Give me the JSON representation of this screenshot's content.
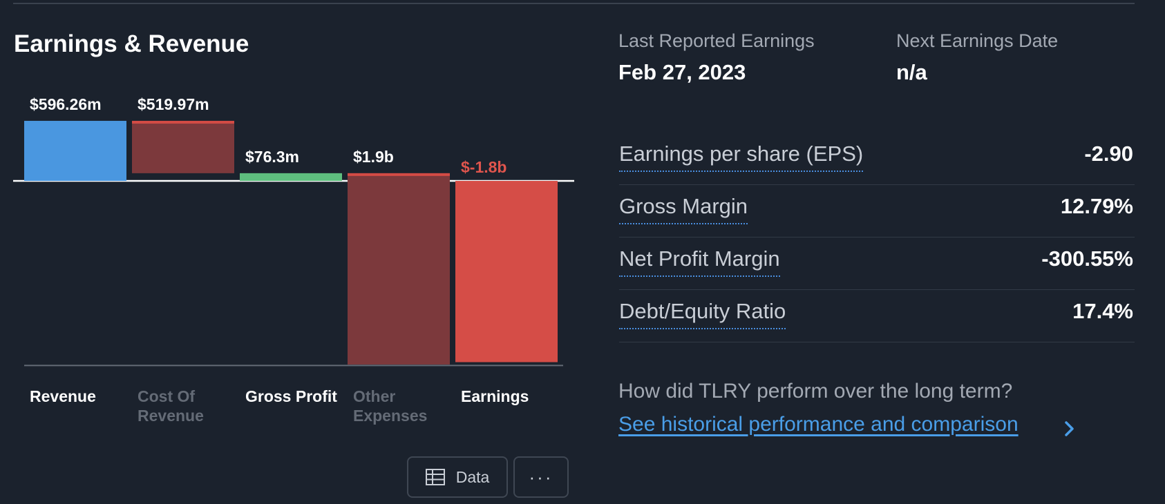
{
  "section": {
    "title": "Earnings & Revenue"
  },
  "toolbar": {
    "data_label": "Data",
    "more_label": "···",
    "data_icon": "table-icon"
  },
  "earnings_info": {
    "last_label": "Last Reported Earnings",
    "last_value": "Feb 27, 2023",
    "next_label": "Next Earnings Date",
    "next_value": "n/a"
  },
  "metrics": [
    {
      "label": "Earnings per share (EPS)",
      "value": "-2.90"
    },
    {
      "label": "Gross Margin",
      "value": "12.79%"
    },
    {
      "label": "Net Profit Margin",
      "value": "-300.55%"
    },
    {
      "label": "Debt/Equity Ratio",
      "value": "17.4%"
    }
  ],
  "long_term": {
    "question": "How did TLRY perform over the long term?",
    "link_text": "See historical performance and comparison"
  },
  "colors": {
    "background": "#1b222d",
    "revenue": "#4a97e0",
    "cost": "#7c393c",
    "cost_accent": "#d34b45",
    "profit": "#5ebe7e",
    "earnings": "#d54d47",
    "negative_text": "#e0554d",
    "link": "#4a9ee8"
  },
  "chart_data": {
    "type": "bar",
    "subtype": "waterfall",
    "unit": "USD",
    "categories": [
      "Revenue",
      "Cost Of Revenue",
      "Gross Profit",
      "Other Expenses",
      "Earnings"
    ],
    "values": [
      596.26,
      519.97,
      76.3,
      1900,
      -1800
    ],
    "bar_labels": [
      "$596.26m",
      "$519.97m",
      "$76.3m",
      "$1.9b",
      "$-1.8b"
    ],
    "steps": [
      {
        "category": "Revenue",
        "from": 0,
        "to": 596.26,
        "kind": "total",
        "color": "#4a97e0"
      },
      {
        "category": "Cost Of Revenue",
        "from": 596.26,
        "to": 76.3,
        "kind": "decrease",
        "color": "#7c393c"
      },
      {
        "category": "Gross Profit",
        "from": 0,
        "to": 76.3,
        "kind": "total",
        "color": "#5ebe7e"
      },
      {
        "category": "Other Expenses",
        "from": 76.3,
        "to": -1823.7,
        "kind": "decrease",
        "color": "#7c393c"
      },
      {
        "category": "Earnings",
        "from": 0,
        "to": -1800,
        "kind": "total",
        "color": "#d54d47"
      }
    ],
    "value_units": "millions",
    "highlighted_categories": [
      "Revenue",
      "Gross Profit",
      "Earnings"
    ],
    "muted_categories": [
      "Cost Of Revenue",
      "Other Expenses"
    ],
    "ylim": [
      -1840,
      630
    ],
    "grid": false,
    "legend": "none"
  }
}
